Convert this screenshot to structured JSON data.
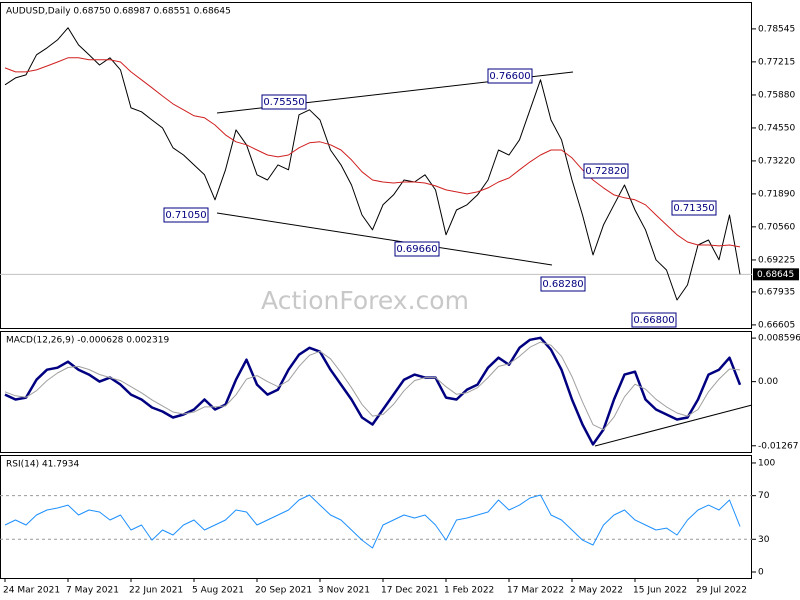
{
  "chart_data": [
    {
      "type": "line",
      "title": "AUDUSD,Daily  0.68750 0.68987 0.68551 0.68645",
      "watermark": "ActionForex.com",
      "categories": [
        "24 Mar 2021",
        null,
        null,
        null,
        null,
        null,
        "7 May 2021",
        null,
        null,
        null,
        null,
        null,
        "22 Jun 2021",
        null,
        null,
        null,
        null,
        null,
        "5 Aug 2021",
        null,
        null,
        null,
        null,
        null,
        "20 Sep 2021",
        null,
        null,
        null,
        null,
        null,
        "3 Nov 2021",
        null,
        null,
        null,
        null,
        null,
        "17 Dec 2021",
        null,
        null,
        null,
        null,
        null,
        "1 Feb 2022",
        null,
        null,
        null,
        null,
        null,
        "17 Mar 2022",
        null,
        null,
        null,
        null,
        null,
        "2 May 2022",
        null,
        null,
        null,
        null,
        null,
        "15 Jun 2022",
        null,
        null,
        null,
        null,
        null,
        "29 Jul 2022",
        null,
        null,
        null,
        null
      ],
      "series": [
        {
          "name": "AUDUSD",
          "color": "#000000",
          "values": [
            0.7629,
            0.7657,
            0.7669,
            0.775,
            0.7778,
            0.781,
            0.7859,
            0.779,
            0.775,
            0.7709,
            0.7738,
            0.7689,
            0.7536,
            0.752,
            0.7487,
            0.7455,
            0.7375,
            0.7346,
            0.7306,
            0.7266,
            0.7165,
            0.7286,
            0.7447,
            0.7387,
            0.7266,
            0.7245,
            0.7306,
            0.7286,
            0.7508,
            0.7528,
            0.7487,
            0.7366,
            0.7306,
            0.7225,
            0.7104,
            0.7044,
            0.7145,
            0.7185,
            0.7245,
            0.7237,
            0.7266,
            0.7205,
            0.7024,
            0.7124,
            0.7145,
            0.7185,
            0.7245,
            0.7366,
            0.7346,
            0.7407,
            0.7528,
            0.7649,
            0.7487,
            0.7407,
            0.7245,
            0.7104,
            0.6943,
            0.7064,
            0.7145,
            0.7225,
            0.7124,
            0.7044,
            0.6923,
            0.6882,
            0.6761,
            0.6822,
            0.6983,
            0.7003,
            0.6923,
            0.7104,
            0.68645
          ]
        },
        {
          "name": "MA",
          "color": "#d02020",
          "values": [
            0.7697,
            0.7681,
            0.7681,
            0.7689,
            0.7705,
            0.7721,
            0.7738,
            0.7738,
            0.773,
            0.773,
            0.773,
            0.7721,
            0.7681,
            0.7649,
            0.7617,
            0.7584,
            0.7552,
            0.7528,
            0.7504,
            0.7496,
            0.7467,
            0.7427,
            0.7399,
            0.7387,
            0.7366,
            0.7346,
            0.7338,
            0.7346,
            0.7375,
            0.7395,
            0.7399,
            0.7387,
            0.7366,
            0.7326,
            0.7278,
            0.7245,
            0.7237,
            0.7233,
            0.7237,
            0.7237,
            0.7233,
            0.7221,
            0.7205,
            0.7197,
            0.7189,
            0.7197,
            0.7213,
            0.7237,
            0.7253,
            0.7286,
            0.7318,
            0.7346,
            0.7366,
            0.7366,
            0.7334,
            0.7286,
            0.7245,
            0.7213,
            0.7185,
            0.7173,
            0.7165,
            0.7145,
            0.7104,
            0.7064,
            0.7024,
            0.6995,
            0.6983,
            0.6983,
            0.6979,
            0.6983,
            0.6975
          ]
        }
      ],
      "ylim": [
        0.6648,
        0.7963
      ],
      "yticks": [
        0.78545,
        0.77215,
        {
          "value": 0.7588,
          "label": "0.75880"
        },
        {
          "value": 0.7455,
          "label": "0.74550"
        },
        {
          "value": 0.7322,
          "label": "0.73220"
        },
        {
          "value": 0.7189,
          "label": "0.71890"
        },
        {
          "value": 0.7056,
          "label": "0.70560"
        },
        0.69225,
        0.67935,
        0.66605
      ],
      "last_price": {
        "value": 0.68645,
        "label": "0.68645"
      },
      "annotations": [
        "0.75550",
        "0.76600",
        "0.71050",
        "0.69660",
        "0.72820",
        "0.71350",
        "0.68280",
        "0.66800"
      ]
    },
    {
      "type": "line",
      "title": "MACD(12,26,9) -0.000628 0.002319",
      "series": [
        {
          "name": "MACD",
          "color": "#000080",
          "values": [
            -0.00256,
            -0.00354,
            -0.00315,
            0.00039,
            0.00236,
            0.00276,
            0.00394,
            0.00236,
            0.00138,
            0,
            0.00079,
            -0.00059,
            -0.00256,
            -0.00354,
            -0.00512,
            -0.00591,
            -0.00709,
            -0.0065,
            -0.00551,
            -0.00354,
            -0.00551,
            -0.00453,
            0.00039,
            0.00433,
            -0.00059,
            -0.00256,
            -0.00158,
            0.00236,
            0.00532,
            0.00669,
            0.00591,
            0.00236,
            -0.00059,
            -0.00354,
            -0.00709,
            -0.00847,
            -0.00551,
            -0.00256,
            0.00039,
            0.00138,
            0.00079,
            0.00079,
            -0.00315,
            -0.00354,
            -0.00158,
            -0.00059,
            0.00276,
            0.00473,
            0.00335,
            0.00669,
            0.00827,
            0.00866,
            0.0063,
            0.00236,
            -0.00354,
            -0.00847,
            -0.0124,
            -0.00945,
            -0.00354,
            0.00138,
            0.00197,
            -0.00354,
            -0.00551,
            -0.0065,
            -0.00748,
            -0.00709,
            -0.00354,
            0.00138,
            0.00236,
            0.00473,
            -0.000628
          ]
        },
        {
          "name": "Signal",
          "color": "#a0a0a0",
          "values": [
            -0.002,
            -0.0028,
            -0.0031,
            -0.0018,
            0.0002,
            0.0017,
            0.0028,
            0.003,
            0.0024,
            0.0014,
            0.0008,
            0.0002,
            -0.001,
            -0.0022,
            -0.0036,
            -0.0048,
            -0.006,
            -0.0064,
            -0.006,
            -0.005,
            -0.005,
            -0.0048,
            -0.0026,
            0.0005,
            0.0012,
            0,
            -0.001,
            0.0002,
            0.003,
            0.0052,
            0.006,
            0.0045,
            0.0018,
            -0.0012,
            -0.0045,
            -0.0068,
            -0.0065,
            -0.0045,
            -0.0018,
            0.0002,
            0.0008,
            0.0008,
            -0.001,
            -0.0025,
            -0.0022,
            -0.0012,
            0.0008,
            0.003,
            0.0035,
            0.005,
            0.0068,
            0.0078,
            0.0072,
            0.005,
            0.001,
            -0.004,
            -0.0085,
            -0.0095,
            -0.007,
            -0.003,
            -0.0005,
            -0.0015,
            -0.0035,
            -0.005,
            -0.0062,
            -0.0068,
            -0.0055,
            -0.002,
            0.0005,
            0.0025,
            0.002319
          ]
        }
      ],
      "ylim": [
        -0.0139,
        0.01
      ],
      "yticks": [
        0.008596,
        {
          "value": 0,
          "label": "0.00"
        },
        -0.01267
      ]
    },
    {
      "type": "line",
      "title": "RSI(14) 41.7934",
      "series": [
        {
          "name": "RSI",
          "color": "#1e90ff",
          "values": [
            43.1,
            47.7,
            43.1,
            52.3,
            56.9,
            58.7,
            61.4,
            52.3,
            56.9,
            55.0,
            47.7,
            52.3,
            38.5,
            43.1,
            29.3,
            38.5,
            33.9,
            43.1,
            47.7,
            38.5,
            43.1,
            47.7,
            56.9,
            55.0,
            43.1,
            47.7,
            52.3,
            56.9,
            66.0,
            70.6,
            61.4,
            52.3,
            47.7,
            38.5,
            29.3,
            22.0,
            43.1,
            47.7,
            52.3,
            49.5,
            52.3,
            43.1,
            29.3,
            47.7,
            49.5,
            52.3,
            55.0,
            66.0,
            56.9,
            61.4,
            67.9,
            70.6,
            52.3,
            47.7,
            38.5,
            29.3,
            24.8,
            43.1,
            52.3,
            56.9,
            47.7,
            43.1,
            38.5,
            40.3,
            33.9,
            47.7,
            56.9,
            61.4,
            56.9,
            66.0,
            41.7934
          ]
        }
      ],
      "ylim": [
        -5.5,
        107.3
      ],
      "yticks": [
        100,
        70,
        30,
        0
      ],
      "levels": [
        70,
        30
      ]
    }
  ]
}
